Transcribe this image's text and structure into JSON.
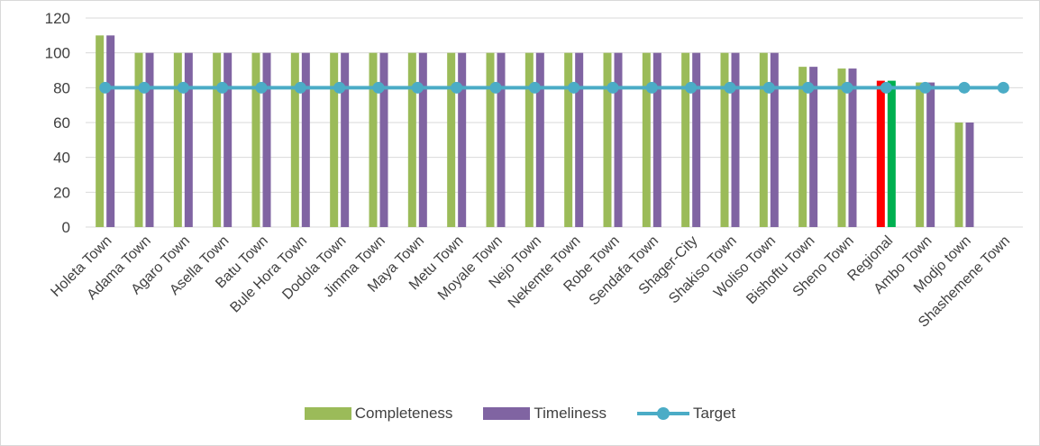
{
  "chart_data": {
    "type": "bar",
    "title": "",
    "xlabel": "",
    "ylabel": "",
    "ylim": [
      0,
      120
    ],
    "yticks": [
      0,
      20,
      40,
      60,
      80,
      100,
      120
    ],
    "grid": true,
    "legend_position": "bottom",
    "categories": [
      "Holeta Town",
      "Adama Town",
      "Agaro Town",
      "Asella Town",
      "Batu Town",
      "Bule Hora Town",
      "Dodola Town",
      "Jimma Town",
      "Maya Town",
      "Metu Town",
      "Moyale Town",
      "Nejo Town",
      "Nekemte Town",
      "Robe Town",
      "Sendafa Town",
      "Shager-City",
      "Shakiso Town",
      "Woliso Town",
      "Bishoftu Town",
      "Sheno Town",
      "Regional",
      "Ambo Town",
      "Modjo town",
      "Shashemene Town"
    ],
    "series": [
      {
        "name": "Completeness",
        "type": "bar",
        "color": "#9bbb59",
        "highlight": {
          "Regional": "#ff0000"
        },
        "values": [
          110,
          100,
          100,
          100,
          100,
          100,
          100,
          100,
          100,
          100,
          100,
          100,
          100,
          100,
          100,
          100,
          100,
          100,
          92,
          91,
          84,
          83,
          60,
          0
        ]
      },
      {
        "name": "Timeliness",
        "type": "bar",
        "color": "#8064a2",
        "highlight": {
          "Regional": "#00b050"
        },
        "values": [
          110,
          100,
          100,
          100,
          100,
          100,
          100,
          100,
          100,
          100,
          100,
          100,
          100,
          100,
          100,
          100,
          100,
          100,
          92,
          91,
          84,
          83,
          60,
          0
        ]
      },
      {
        "name": "Target",
        "type": "line",
        "color": "#4bacc6",
        "values": [
          80,
          80,
          80,
          80,
          80,
          80,
          80,
          80,
          80,
          80,
          80,
          80,
          80,
          80,
          80,
          80,
          80,
          80,
          80,
          80,
          80,
          80,
          80,
          80
        ]
      }
    ]
  }
}
